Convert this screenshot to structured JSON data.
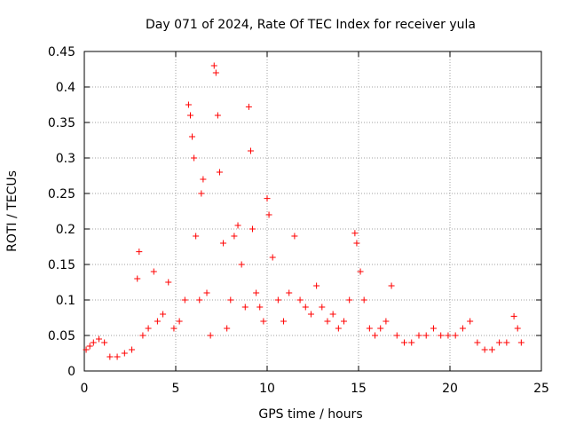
{
  "chart_data": {
    "type": "scatter",
    "title": "Day 071 of 2024, Rate Of TEC Index for receiver yula",
    "xlabel": "GPS time / hours",
    "ylabel": "ROTI / TECUs",
    "xlim": [
      0,
      25
    ],
    "ylim": [
      0,
      0.45
    ],
    "xticks": [
      0,
      5,
      10,
      15,
      20,
      25
    ],
    "xtick_labels": [
      "0",
      "5",
      "10",
      "15",
      "20",
      "25"
    ],
    "yticks": [
      0,
      0.05,
      0.1,
      0.15,
      0.2,
      0.25,
      0.3,
      0.35,
      0.4,
      0.45
    ],
    "ytick_labels": [
      "0",
      "0.05",
      "0.1",
      "0.15",
      "0.2",
      "0.25",
      "0.3",
      "0.35",
      "0.4",
      "0.45"
    ],
    "grid": true,
    "marker": "+",
    "color": "#ff0000",
    "series": [
      {
        "x": [
          0.1,
          0.3,
          0.5,
          0.8,
          1.1,
          1.4,
          1.8,
          2.2,
          2.6,
          2.9,
          3.0,
          3.2,
          3.5,
          3.8,
          4.0,
          4.3,
          4.6,
          4.9,
          5.2,
          5.5,
          5.7,
          5.8,
          5.9,
          6.0,
          6.1,
          6.3,
          6.4,
          6.5,
          6.7,
          6.9,
          7.1,
          7.2,
          7.3,
          7.4,
          7.6,
          7.8,
          8.0,
          8.2,
          8.4,
          8.6,
          8.8,
          9.0,
          9.1,
          9.2,
          9.4,
          9.6,
          9.8,
          10.0,
          10.1,
          10.3,
          10.6,
          10.9,
          11.2,
          11.5,
          11.8,
          12.1,
          12.4,
          12.7,
          13.0,
          13.3,
          13.6,
          13.9,
          14.2,
          14.5,
          14.8,
          14.9,
          15.1,
          15.3,
          15.6,
          15.9,
          16.2,
          16.5,
          16.8,
          17.1,
          17.5,
          17.9,
          18.3,
          18.7,
          19.1,
          19.5,
          19.9,
          20.3,
          20.7,
          21.1,
          21.5,
          21.9,
          22.3,
          22.7,
          23.1,
          23.5,
          23.7,
          23.9
        ],
        "y": [
          0.03,
          0.035,
          0.04,
          0.045,
          0.04,
          0.02,
          0.02,
          0.025,
          0.03,
          0.13,
          0.168,
          0.05,
          0.06,
          0.14,
          0.07,
          0.08,
          0.125,
          0.06,
          0.07,
          0.1,
          0.375,
          0.36,
          0.33,
          0.3,
          0.19,
          0.1,
          0.25,
          0.27,
          0.11,
          0.05,
          0.43,
          0.42,
          0.36,
          0.28,
          0.18,
          0.06,
          0.1,
          0.19,
          0.205,
          0.15,
          0.09,
          0.372,
          0.31,
          0.2,
          0.11,
          0.09,
          0.07,
          0.243,
          0.22,
          0.16,
          0.1,
          0.07,
          0.11,
          0.19,
          0.1,
          0.09,
          0.08,
          0.12,
          0.09,
          0.07,
          0.08,
          0.06,
          0.07,
          0.1,
          0.194,
          0.18,
          0.14,
          0.1,
          0.06,
          0.05,
          0.06,
          0.07,
          0.12,
          0.05,
          0.04,
          0.04,
          0.05,
          0.05,
          0.06,
          0.05,
          0.05,
          0.05,
          0.06,
          0.07,
          0.04,
          0.03,
          0.03,
          0.04,
          0.04,
          0.077,
          0.06,
          0.04
        ]
      }
    ]
  }
}
